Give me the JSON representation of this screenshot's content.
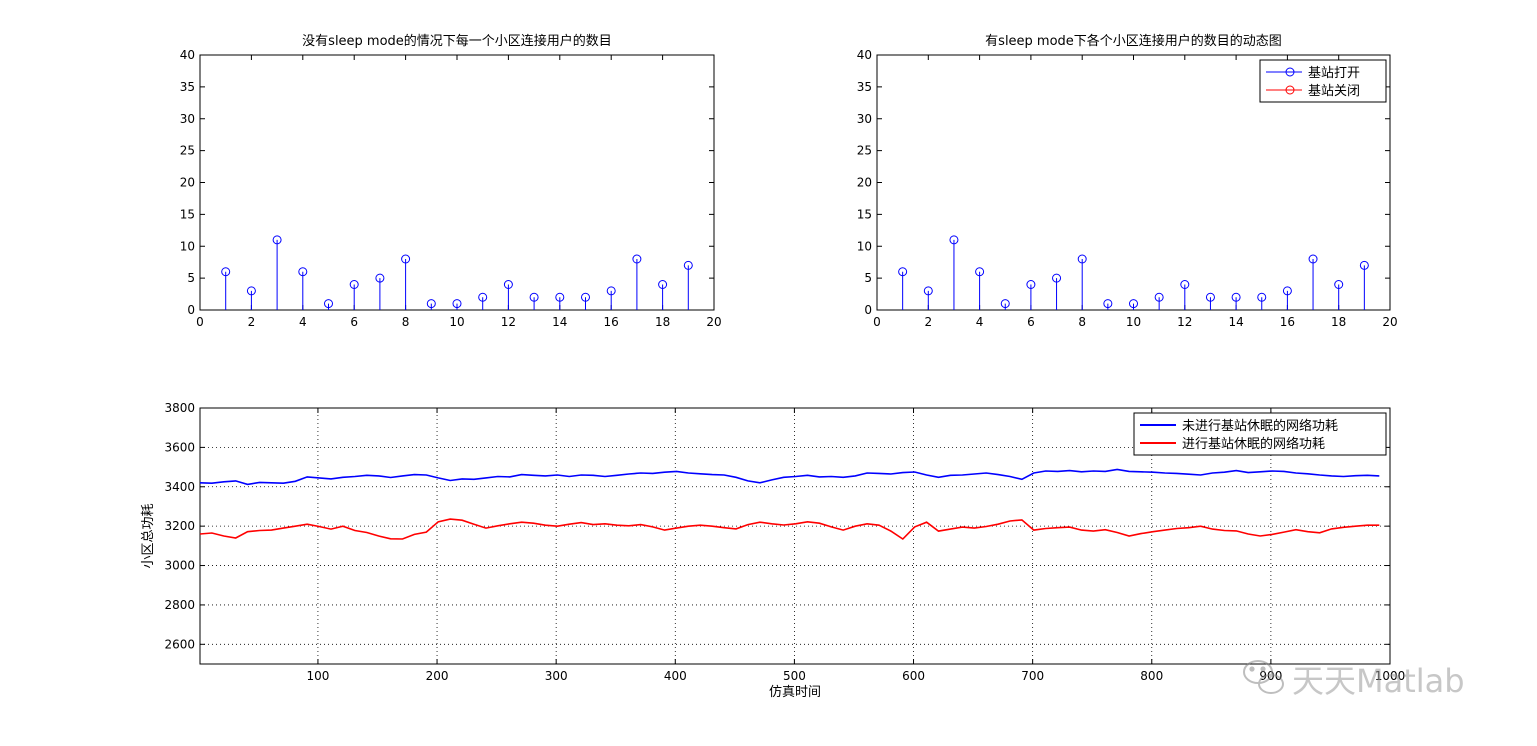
{
  "figure": {
    "watermark_text": "天天Matlab"
  },
  "chart_data": [
    {
      "type": "stem",
      "title": "没有sleep mode的情况下每一个小区连接用户的数目",
      "xlabel": "",
      "ylabel": "",
      "xlim": [
        0,
        20
      ],
      "ylim": [
        0,
        40
      ],
      "xticks": [
        0,
        2,
        4,
        6,
        8,
        10,
        12,
        14,
        16,
        18,
        20
      ],
      "yticks": [
        0,
        5,
        10,
        15,
        20,
        25,
        30,
        35,
        40
      ],
      "grid": false,
      "series": [
        {
          "color": "#0000ff",
          "marker": "circle",
          "x": [
            1,
            2,
            3,
            4,
            5,
            6,
            7,
            8,
            9,
            10,
            11,
            12,
            13,
            14,
            15,
            16,
            17,
            18,
            19
          ],
          "y": [
            6,
            3,
            11,
            6,
            1,
            4,
            5,
            8,
            1,
            1,
            2,
            4,
            2,
            2,
            2,
            3,
            8,
            4,
            7
          ]
        }
      ]
    },
    {
      "type": "stem",
      "title": "有sleep mode下各个小区连接用户的数目的动态图",
      "xlabel": "",
      "ylabel": "",
      "xlim": [
        0,
        20
      ],
      "ylim": [
        0,
        40
      ],
      "xticks": [
        0,
        2,
        4,
        6,
        8,
        10,
        12,
        14,
        16,
        18,
        20
      ],
      "yticks": [
        0,
        5,
        10,
        15,
        20,
        25,
        30,
        35,
        40
      ],
      "grid": false,
      "legend_position": "top-right",
      "series": [
        {
          "name": "基站打开",
          "color": "#0000ff",
          "marker": "circle",
          "x": [
            1,
            2,
            3,
            4,
            5,
            6,
            7,
            8,
            9,
            10,
            11,
            12,
            13,
            14,
            15,
            16,
            17,
            18,
            19
          ],
          "y": [
            6,
            3,
            11,
            6,
            1,
            4,
            5,
            8,
            1,
            1,
            2,
            4,
            2,
            2,
            2,
            3,
            8,
            4,
            7
          ]
        },
        {
          "name": "基站关闭",
          "color": "#ff0000",
          "marker": "circle",
          "x": [],
          "y": []
        }
      ]
    },
    {
      "type": "line",
      "title": "",
      "xlabel": "仿真时间",
      "ylabel": "小区总功耗",
      "xlim": [
        1,
        1000
      ],
      "ylim": [
        2500,
        3800
      ],
      "xticks": [
        100,
        200,
        300,
        400,
        500,
        600,
        700,
        800,
        900,
        1000
      ],
      "yticks": [
        2600,
        2800,
        3000,
        3200,
        3400,
        3600,
        3800
      ],
      "grid": true,
      "legend_position": "top-right",
      "series": [
        {
          "name": "未进行基站休眠的网络功耗",
          "color": "#0000ff",
          "x_start": 1,
          "x_step": 10,
          "y": [
            3420,
            3418,
            3425,
            3430,
            3412,
            3422,
            3420,
            3418,
            3428,
            3450,
            3445,
            3440,
            3448,
            3452,
            3458,
            3455,
            3447,
            3455,
            3462,
            3460,
            3445,
            3432,
            3440,
            3438,
            3445,
            3452,
            3450,
            3462,
            3458,
            3455,
            3460,
            3452,
            3460,
            3458,
            3452,
            3458,
            3465,
            3470,
            3468,
            3474,
            3478,
            3470,
            3466,
            3462,
            3460,
            3448,
            3430,
            3420,
            3435,
            3448,
            3452,
            3458,
            3450,
            3452,
            3448,
            3455,
            3470,
            3468,
            3465,
            3472,
            3475,
            3460,
            3448,
            3458,
            3460,
            3465,
            3470,
            3462,
            3452,
            3438,
            3470,
            3480,
            3478,
            3482,
            3476,
            3480,
            3478,
            3488,
            3478,
            3476,
            3474,
            3470,
            3468,
            3464,
            3460,
            3470,
            3474,
            3482,
            3472,
            3476,
            3480,
            3478,
            3470,
            3466,
            3460,
            3455,
            3452,
            3456,
            3458,
            3455
          ]
        },
        {
          "name": "进行基站休眠的网络功耗",
          "color": "#ff0000",
          "x_start": 1,
          "x_step": 10,
          "y": [
            3160,
            3165,
            3150,
            3140,
            3172,
            3178,
            3180,
            3190,
            3200,
            3210,
            3198,
            3185,
            3200,
            3178,
            3168,
            3150,
            3136,
            3135,
            3158,
            3170,
            3222,
            3236,
            3230,
            3210,
            3190,
            3202,
            3212,
            3220,
            3215,
            3205,
            3200,
            3210,
            3218,
            3208,
            3212,
            3205,
            3202,
            3208,
            3196,
            3180,
            3190,
            3200,
            3205,
            3200,
            3192,
            3186,
            3208,
            3220,
            3212,
            3206,
            3212,
            3222,
            3215,
            3196,
            3180,
            3200,
            3212,
            3205,
            3175,
            3135,
            3196,
            3220,
            3175,
            3185,
            3195,
            3190,
            3198,
            3210,
            3226,
            3232,
            3180,
            3188,
            3192,
            3195,
            3180,
            3175,
            3182,
            3168,
            3150,
            3162,
            3172,
            3180,
            3188,
            3192,
            3200,
            3185,
            3178,
            3176,
            3160,
            3150,
            3158,
            3170,
            3182,
            3172,
            3166,
            3186,
            3194,
            3200,
            3205,
            3205
          ]
        }
      ]
    }
  ]
}
